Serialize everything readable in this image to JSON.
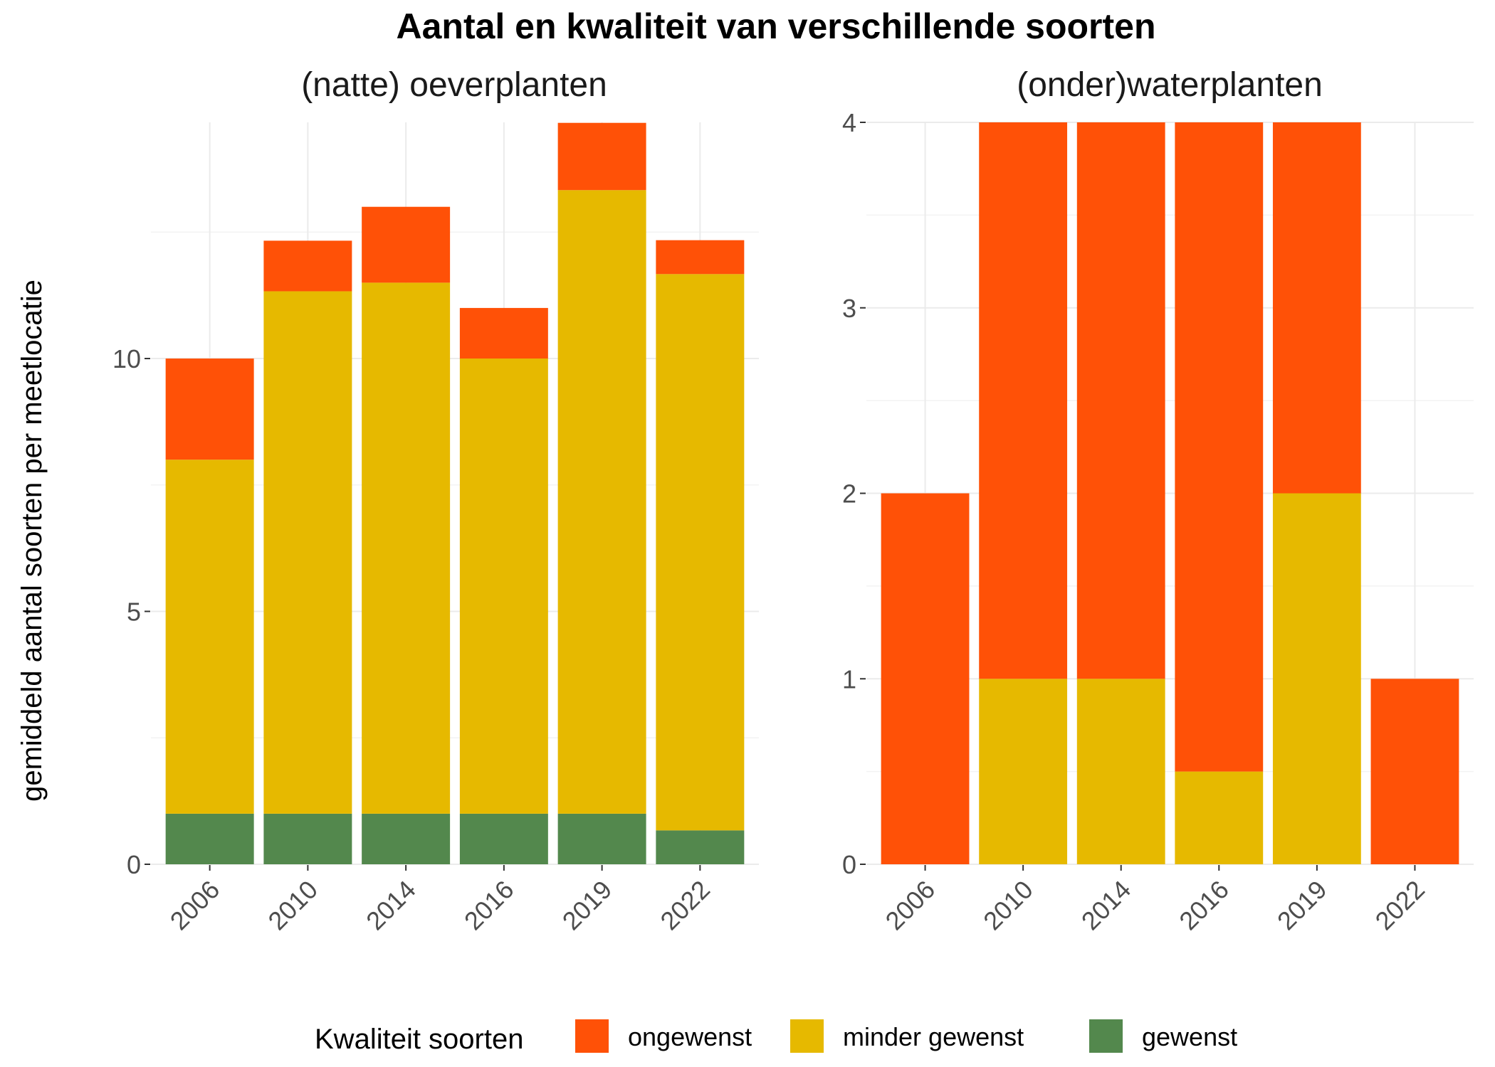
{
  "title": "Aantal en kwaliteit van verschillende soorten",
  "ylabel": "gemiddeld aantal soorten per meetlocatie",
  "legend": {
    "title": "Kwaliteit soorten",
    "position": "bottom",
    "entries": [
      {
        "key": "ongewenst",
        "label": "ongewenst",
        "color": "#FF5107"
      },
      {
        "key": "minder_gewenst",
        "label": "minder gewenst",
        "color": "#E6B900"
      },
      {
        "key": "gewenst",
        "label": "gewenst",
        "color": "#53884D"
      }
    ]
  },
  "chart_data": [
    {
      "type": "bar",
      "stacked": true,
      "title": "(natte) oeverplanten",
      "categories": [
        "2006",
        "2010",
        "2014",
        "2016",
        "2019",
        "2022"
      ],
      "ylim": [
        0,
        14.67
      ],
      "yticks": [
        0,
        5,
        10
      ],
      "yticklabels": [
        "0",
        "5",
        "10"
      ],
      "grid": true,
      "series": [
        {
          "name": "gewenst",
          "values": [
            1,
            1,
            1,
            1,
            1,
            0.67
          ]
        },
        {
          "name": "minder gewenst",
          "values": [
            7,
            10.33,
            10.5,
            9,
            12.33,
            11
          ]
        },
        {
          "name": "ongewenst",
          "values": [
            2,
            1,
            1.5,
            1,
            1.33,
            0.67
          ]
        }
      ]
    },
    {
      "type": "bar",
      "stacked": true,
      "title": "(onder)waterplanten",
      "categories": [
        "2006",
        "2010",
        "2014",
        "2016",
        "2019",
        "2022"
      ],
      "ylim": [
        0,
        4
      ],
      "yticks": [
        0,
        1,
        2,
        3,
        4
      ],
      "yticklabels": [
        "0",
        "1",
        "2",
        "3",
        "4"
      ],
      "grid": true,
      "series": [
        {
          "name": "gewenst",
          "values": [
            0,
            0,
            0,
            0,
            0,
            0
          ]
        },
        {
          "name": "minder gewenst",
          "values": [
            0,
            1,
            1,
            0.5,
            2,
            0
          ]
        },
        {
          "name": "ongewenst",
          "values": [
            2,
            3,
            3,
            3.5,
            2,
            1
          ]
        }
      ]
    }
  ]
}
